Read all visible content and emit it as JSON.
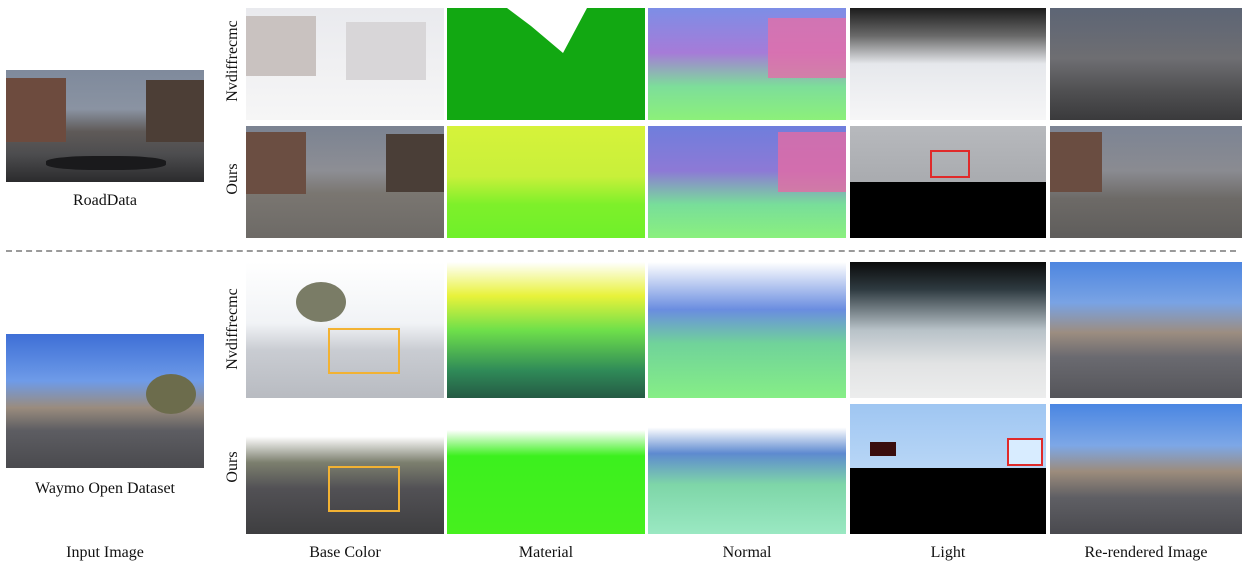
{
  "row_labels": {
    "nvdiffrecmc": "Nvdiffrecmc",
    "ours": "Ours"
  },
  "dataset_labels": {
    "roaddata": "RoadData",
    "waymo": "Waymo Open Dataset"
  },
  "column_captions": {
    "input": "Input Image",
    "base_color": "Base Color",
    "material": "Material",
    "normal": "Normal",
    "light": "Light",
    "rerendered": "Re-rendered Image"
  },
  "highlight_colors": {
    "red_box": "#e02a2a",
    "orange_box": "#f2b233"
  }
}
